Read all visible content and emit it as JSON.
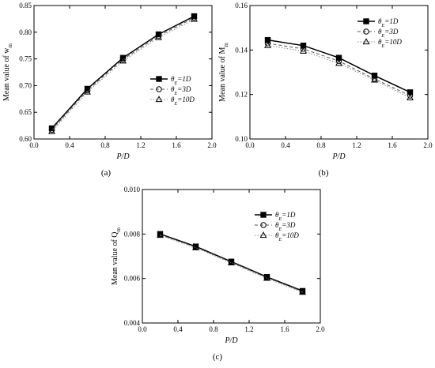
{
  "chart_data": [
    {
      "type": "line",
      "panel_label": "(a)",
      "xlabel": "P/D",
      "ylabel": "Mean value of w_m",
      "xlim": [
        0.0,
        2.0
      ],
      "ylim": [
        0.6,
        0.85
      ],
      "xticks": [
        "0.0",
        "0.4",
        "0.8",
        "1.2",
        "1.6",
        "2.0"
      ],
      "yticks": [
        "0.60",
        "0.65",
        "0.70",
        "0.75",
        "0.80",
        "0.85"
      ],
      "legend_position": "center-right",
      "x": [
        0.2,
        0.6,
        1.0,
        1.4,
        1.8
      ],
      "series": [
        {
          "name": "θ_E=1D",
          "marker": "square",
          "line": "solid",
          "values": [
            0.62,
            0.694,
            0.752,
            0.796,
            0.83
          ]
        },
        {
          "name": "θ_E=3D",
          "marker": "circle",
          "line": "dash",
          "values": [
            0.617,
            0.691,
            0.749,
            0.793,
            0.827
          ]
        },
        {
          "name": "θ_E=10D",
          "marker": "triangle",
          "line": "dot",
          "values": [
            0.614,
            0.688,
            0.746,
            0.79,
            0.824
          ]
        }
      ]
    },
    {
      "type": "line",
      "panel_label": "(b)",
      "xlabel": "P/D",
      "ylabel": "Mean value of M_m",
      "xlim": [
        0.0,
        2.0
      ],
      "ylim": [
        0.1,
        0.16
      ],
      "xticks": [
        "0.0",
        "0.4",
        "0.8",
        "1.2",
        "1.6",
        "2.0"
      ],
      "yticks": [
        "0.10",
        "0.12",
        "0.14",
        "0.16"
      ],
      "legend_position": "top-right",
      "x": [
        0.2,
        0.6,
        1.0,
        1.4,
        1.8
      ],
      "series": [
        {
          "name": "θ_E=1D",
          "marker": "square",
          "line": "solid",
          "values": [
            0.1445,
            0.142,
            0.1365,
            0.1285,
            0.121
          ]
        },
        {
          "name": "θ_E=3D",
          "marker": "circle",
          "line": "dash",
          "values": [
            0.143,
            0.1405,
            0.135,
            0.127,
            0.1195
          ]
        },
        {
          "name": "θ_E=10D",
          "marker": "triangle",
          "line": "dot",
          "values": [
            0.142,
            0.1395,
            0.134,
            0.1265,
            0.1185
          ]
        }
      ]
    },
    {
      "type": "line",
      "panel_label": "(c)",
      "xlabel": "P/D",
      "ylabel": "Mean value of Q_m",
      "xlim": [
        0.0,
        2.0
      ],
      "ylim": [
        0.004,
        0.01
      ],
      "xticks": [
        "0.0",
        "0.4",
        "0.8",
        "1.2",
        "1.6",
        "2.0"
      ],
      "yticks": [
        "0.004",
        "0.006",
        "0.008",
        "0.010"
      ],
      "legend_position": "top-right",
      "x": [
        0.2,
        0.6,
        1.0,
        1.4,
        1.8
      ],
      "series": [
        {
          "name": "θ_E=1D",
          "marker": "square",
          "line": "solid",
          "values": [
            0.008,
            0.00744,
            0.00676,
            0.00607,
            0.00544
          ]
        },
        {
          "name": "θ_E=3D",
          "marker": "circle",
          "line": "dash",
          "values": [
            0.00797,
            0.00741,
            0.00673,
            0.00604,
            0.00541
          ]
        },
        {
          "name": "θ_E=10D",
          "marker": "triangle",
          "line": "dot",
          "values": [
            0.00794,
            0.00738,
            0.0067,
            0.00601,
            0.00538
          ]
        }
      ]
    }
  ]
}
